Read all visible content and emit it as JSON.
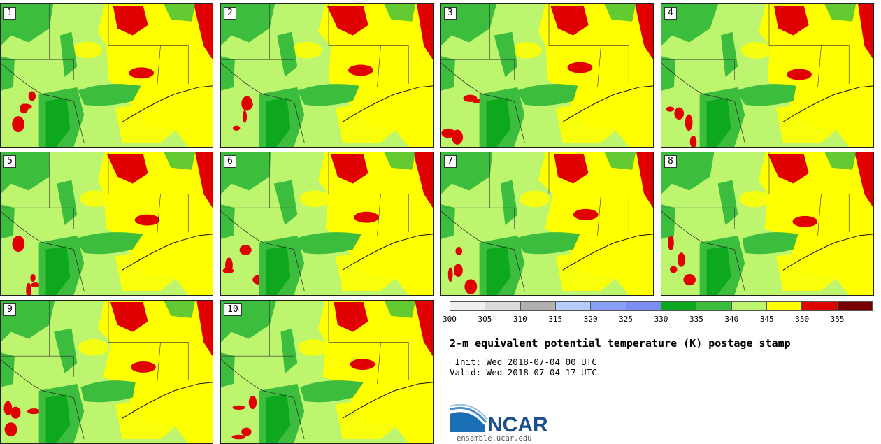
{
  "panels": [
    {
      "label": "1"
    },
    {
      "label": "2"
    },
    {
      "label": "3"
    },
    {
      "label": "4"
    },
    {
      "label": "5"
    },
    {
      "label": "6"
    },
    {
      "label": "7"
    },
    {
      "label": "8"
    },
    {
      "label": "9"
    },
    {
      "label": "10"
    }
  ],
  "colorbar": {
    "colors": [
      "#f0f0f0",
      "#dcdcdc",
      "#b0b0b0",
      "#b4cdfa",
      "#879ff7",
      "#7b8ef5",
      "#0ea81e",
      "#3dbd3d",
      "#bdf56f",
      "#ffff00",
      "#e00000",
      "#7a0000"
    ],
    "ticks": [
      "300",
      "305",
      "310",
      "315",
      "320",
      "325",
      "330",
      "335",
      "340",
      "345",
      "350",
      "355"
    ]
  },
  "map_colors": {
    "base": "#bdf56f",
    "green": "#3dbd3d",
    "dark_green": "#0ea81e",
    "yellow": "#ffff00",
    "red": "#e00000"
  },
  "title": "2-m equivalent potential temperature (K) postage stamp",
  "init_line": " Init: Wed 2018-07-04 00 UTC",
  "valid_line": "Valid: Wed 2018-07-04 17 UTC",
  "logo_text": "NCAR",
  "url": "ensemble.ucar.edu"
}
